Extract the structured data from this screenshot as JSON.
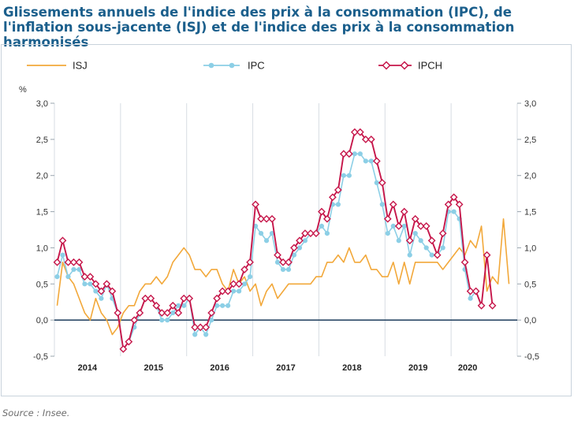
{
  "title": "Glissements annuels de l'indice des prix à la consommation (IPC), de l'inflation sous-jacente (ISJ) et de l'indice des prix à la consommation harmonisés",
  "source": "Source : Insee.",
  "chart_data": {
    "type": "line",
    "ylabel": "%",
    "ylim": [
      -0.5,
      3.0
    ],
    "y_ticks": [
      "3,0",
      "2,5",
      "2,0",
      "1,5",
      "1,0",
      "0,5",
      "0,0",
      "-0,5"
    ],
    "y_tick_values": [
      3.0,
      2.5,
      2.0,
      1.5,
      1.0,
      0.5,
      0.0,
      -0.5
    ],
    "year_labels": [
      "2014",
      "2015",
      "2016",
      "2017",
      "2018",
      "2019",
      "2020"
    ],
    "x_start": "2014-01",
    "x_end": "2020-06",
    "colors": {
      "ISJ": "#f2a83a",
      "IPC": "#8ccfe6",
      "IPCH": "#c6164a",
      "axis": "#1a3a5a",
      "grid": "#d7dde3"
    },
    "series": [
      {
        "name": "ISJ",
        "marker": "none",
        "values": [
          0.2,
          0.8,
          0.6,
          0.5,
          0.3,
          0.1,
          0.0,
          0.3,
          0.1,
          0.0,
          -0.2,
          -0.1,
          0.1,
          0.2,
          0.2,
          0.4,
          0.5,
          0.5,
          0.6,
          0.5,
          0.6,
          0.8,
          0.9,
          1.0,
          0.9,
          0.7,
          0.7,
          0.6,
          0.7,
          0.7,
          0.5,
          0.4,
          0.7,
          0.5,
          0.6,
          0.4,
          0.5,
          0.2,
          0.4,
          0.5,
          0.3,
          0.4,
          0.5,
          0.5,
          0.5,
          0.5,
          0.5,
          0.6,
          0.6,
          0.8,
          0.8,
          0.9,
          0.8,
          1.0,
          0.8,
          0.8,
          0.9,
          0.7,
          0.7,
          0.6,
          0.6,
          0.8,
          0.5,
          0.8,
          0.5,
          0.8,
          0.8,
          0.8,
          0.8,
          0.8,
          0.7,
          0.8,
          0.9,
          1.0,
          0.9,
          1.1,
          1.0,
          1.3,
          0.4,
          0.6,
          0.5,
          1.4,
          0.5
        ]
      },
      {
        "name": "IPC",
        "marker": "circle",
        "values": [
          0.6,
          0.9,
          0.6,
          0.7,
          0.7,
          0.5,
          0.5,
          0.4,
          0.3,
          0.5,
          0.3,
          0.1,
          -0.4,
          -0.3,
          -0.1,
          0.1,
          0.3,
          0.3,
          0.2,
          0.0,
          0.0,
          0.1,
          0.2,
          0.2,
          0.3,
          -0.2,
          -0.1,
          -0.2,
          0.0,
          0.2,
          0.2,
          0.2,
          0.4,
          0.4,
          0.5,
          0.6,
          1.3,
          1.2,
          1.1,
          1.2,
          0.8,
          0.7,
          0.7,
          0.9,
          1.0,
          1.1,
          1.2,
          1.2,
          1.3,
          1.2,
          1.6,
          1.6,
          2.0,
          2.0,
          2.3,
          2.3,
          2.2,
          2.2,
          1.9,
          1.6,
          1.2,
          1.3,
          1.1,
          1.3,
          0.9,
          1.2,
          1.1,
          1.0,
          0.9,
          0.9,
          1.0,
          1.5,
          1.5,
          1.4,
          0.7,
          0.3,
          0.4,
          0.2,
          null,
          null,
          null,
          null,
          null
        ]
      },
      {
        "name": "IPCH",
        "marker": "diamond",
        "values": [
          0.8,
          1.1,
          0.8,
          0.8,
          0.8,
          0.6,
          0.6,
          0.5,
          0.4,
          0.5,
          0.4,
          0.1,
          -0.4,
          -0.3,
          0.0,
          0.1,
          0.3,
          0.3,
          0.2,
          0.1,
          0.1,
          0.2,
          0.1,
          0.3,
          0.3,
          -0.1,
          -0.1,
          -0.1,
          0.1,
          0.3,
          0.4,
          0.4,
          0.5,
          0.5,
          0.7,
          0.8,
          1.6,
          1.4,
          1.4,
          1.4,
          0.9,
          0.8,
          0.8,
          1.0,
          1.1,
          1.2,
          1.2,
          1.2,
          1.5,
          1.4,
          1.7,
          1.8,
          2.3,
          2.3,
          2.6,
          2.6,
          2.5,
          2.5,
          2.2,
          1.9,
          1.4,
          1.6,
          1.3,
          1.5,
          1.1,
          1.4,
          1.3,
          1.3,
          1.1,
          0.9,
          1.2,
          1.6,
          1.7,
          1.6,
          0.8,
          0.4,
          0.4,
          0.2,
          0.9,
          0.2,
          null,
          null,
          null
        ]
      }
    ]
  }
}
